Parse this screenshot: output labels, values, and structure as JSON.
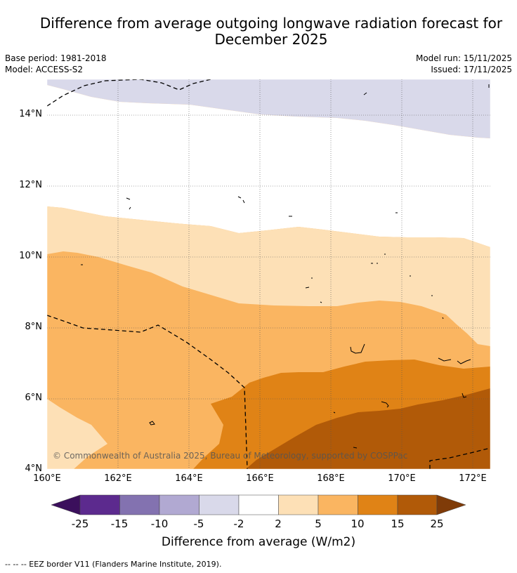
{
  "title": {
    "line1": "Difference from average outgoing longwave radiation forecast for",
    "line2": "December 2025"
  },
  "meta": {
    "base_period": "Base period: 1981-2018",
    "model": "Model: ACCESS-S2",
    "model_run": "Model run: 15/11/2025",
    "issued": "Issued: 17/11/2025"
  },
  "map": {
    "lat_labels": [
      "14°N",
      "12°N",
      "10°N",
      "8°N",
      "6°N",
      "4°N"
    ],
    "lon_labels": [
      "160°E",
      "162°E",
      "164°E",
      "166°E",
      "168°E",
      "170°E",
      "172°E"
    ],
    "lat_range": [
      4,
      15
    ],
    "lon_range": [
      160,
      172.5
    ],
    "copyright": "© Commonwealth of Australia 2025, Bureau of Meteorology, supported by COSPPac"
  },
  "colorbar": {
    "ticks": [
      "-25",
      "-15",
      "-10",
      "-5",
      "-2",
      "2",
      "5",
      "10",
      "15",
      "25"
    ],
    "colors": [
      "#3b0f5c",
      "#5c2a8e",
      "#8372b0",
      "#b1a9d2",
      "#d9d9ea",
      "#ffffff",
      "#fde0b6",
      "#fab561",
      "#e08316",
      "#b15a08",
      "#7f3b08"
    ],
    "label": "Difference from average (W/m2)"
  },
  "legend": {
    "eez": "--  --  -- EEZ border V11 (Flanders Marine Institute, 2019)."
  }
}
